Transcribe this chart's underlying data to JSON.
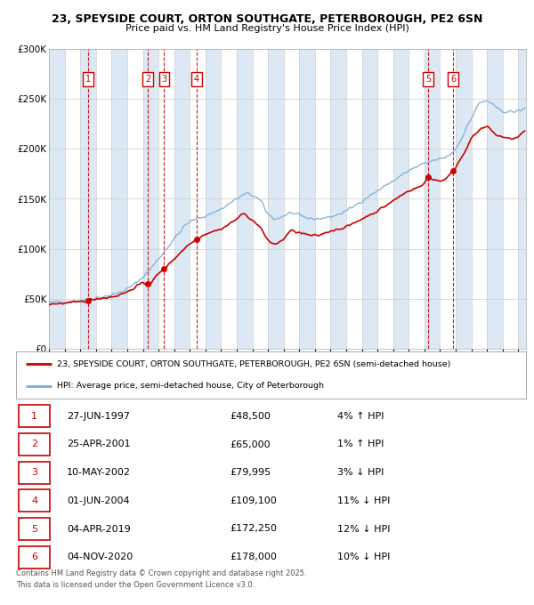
{
  "title_line1": "23, SPEYSIDE COURT, ORTON SOUTHGATE, PETERBOROUGH, PE2 6SN",
  "title_line2": "Price paid vs. HM Land Registry's House Price Index (HPI)",
  "legend_line1": "23, SPEYSIDE COURT, ORTON SOUTHGATE, PETERBOROUGH, PE2 6SN (semi-detached house)",
  "legend_line2": "HPI: Average price, semi-detached house, City of Peterborough",
  "footer_line1": "Contains HM Land Registry data © Crown copyright and database right 2025.",
  "footer_line2": "This data is licensed under the Open Government Licence v3.0.",
  "sale_color": "#cc0000",
  "hpi_color": "#7dadd4",
  "band_color": "#dce9f5",
  "bg_color": "#f0f4f8",
  "ylim": [
    0,
    300000
  ],
  "xlim_start": 1995.0,
  "xlim_end": 2025.5,
  "sales": [
    {
      "num": 1,
      "year": 1997.48,
      "price": 48500
    },
    {
      "num": 2,
      "year": 2001.31,
      "price": 65000
    },
    {
      "num": 3,
      "year": 2002.36,
      "price": 79995
    },
    {
      "num": 4,
      "year": 2004.42,
      "price": 109100
    },
    {
      "num": 5,
      "year": 2019.25,
      "price": 172250
    },
    {
      "num": 6,
      "year": 2020.84,
      "price": 178000
    }
  ],
  "table_rows": [
    {
      "num": 1,
      "date": "27-JUN-1997",
      "price": "£48,500",
      "hpi": "4% ↑ HPI"
    },
    {
      "num": 2,
      "date": "25-APR-2001",
      "price": "£65,000",
      "hpi": "1% ↑ HPI"
    },
    {
      "num": 3,
      "date": "10-MAY-2002",
      "price": "£79,995",
      "hpi": "3% ↓ HPI"
    },
    {
      "num": 4,
      "date": "01-JUN-2004",
      "price": "£109,100",
      "hpi": "11% ↓ HPI"
    },
    {
      "num": 5,
      "date": "04-APR-2019",
      "price": "£172,250",
      "hpi": "12% ↓ HPI"
    },
    {
      "num": 6,
      "date": "04-NOV-2020",
      "price": "£178,000",
      "hpi": "10% ↓ HPI"
    }
  ],
  "hpi_keypoints": [
    [
      1995.0,
      46000
    ],
    [
      1996.0,
      47500
    ],
    [
      1997.0,
      48500
    ],
    [
      1998.0,
      51000
    ],
    [
      1999.0,
      54000
    ],
    [
      2000.0,
      60000
    ],
    [
      2001.0,
      72000
    ],
    [
      2002.0,
      90000
    ],
    [
      2003.0,
      110000
    ],
    [
      2004.0,
      127000
    ],
    [
      2005.0,
      133000
    ],
    [
      2006.0,
      140000
    ],
    [
      2007.0,
      150000
    ],
    [
      2007.7,
      155000
    ],
    [
      2008.5,
      148000
    ],
    [
      2009.0,
      135000
    ],
    [
      2009.5,
      130000
    ],
    [
      2010.0,
      133000
    ],
    [
      2010.5,
      136000
    ],
    [
      2011.0,
      133000
    ],
    [
      2012.0,
      130000
    ],
    [
      2013.0,
      132000
    ],
    [
      2014.0,
      138000
    ],
    [
      2015.0,
      148000
    ],
    [
      2016.0,
      158000
    ],
    [
      2017.0,
      168000
    ],
    [
      2018.0,
      178000
    ],
    [
      2019.0,
      185000
    ],
    [
      2019.5,
      188000
    ],
    [
      2020.0,
      190000
    ],
    [
      2020.5,
      193000
    ],
    [
      2021.0,
      200000
    ],
    [
      2021.5,
      215000
    ],
    [
      2022.0,
      230000
    ],
    [
      2022.5,
      245000
    ],
    [
      2023.0,
      248000
    ],
    [
      2023.5,
      242000
    ],
    [
      2024.0,
      238000
    ],
    [
      2024.5,
      237000
    ],
    [
      2025.4,
      240000
    ]
  ],
  "pp_keypoints": [
    [
      1995.0,
      45000
    ],
    [
      1996.5,
      46000
    ],
    [
      1997.48,
      48500
    ],
    [
      1998.0,
      50000
    ],
    [
      1999.0,
      52000
    ],
    [
      2000.0,
      57000
    ],
    [
      2001.0,
      65000
    ],
    [
      2001.31,
      65000
    ],
    [
      2002.0,
      75000
    ],
    [
      2002.36,
      79995
    ],
    [
      2003.0,
      90000
    ],
    [
      2004.0,
      105000
    ],
    [
      2004.42,
      109100
    ],
    [
      2005.0,
      115000
    ],
    [
      2006.0,
      120000
    ],
    [
      2007.0,
      130000
    ],
    [
      2007.5,
      135000
    ],
    [
      2008.0,
      128000
    ],
    [
      2008.5,
      122000
    ],
    [
      2009.0,
      108000
    ],
    [
      2009.5,
      105000
    ],
    [
      2010.0,
      110000
    ],
    [
      2010.5,
      118000
    ],
    [
      2011.0,
      116000
    ],
    [
      2012.0,
      113000
    ],
    [
      2013.0,
      118000
    ],
    [
      2014.0,
      122000
    ],
    [
      2015.0,
      130000
    ],
    [
      2016.0,
      138000
    ],
    [
      2017.0,
      148000
    ],
    [
      2018.0,
      158000
    ],
    [
      2019.0,
      165000
    ],
    [
      2019.25,
      172250
    ],
    [
      2019.5,
      170000
    ],
    [
      2020.0,
      168000
    ],
    [
      2020.5,
      172000
    ],
    [
      2020.84,
      178000
    ],
    [
      2021.0,
      182000
    ],
    [
      2021.5,
      195000
    ],
    [
      2022.0,
      210000
    ],
    [
      2022.5,
      218000
    ],
    [
      2023.0,
      222000
    ],
    [
      2023.5,
      215000
    ],
    [
      2024.0,
      212000
    ],
    [
      2024.5,
      210000
    ],
    [
      2025.4,
      218000
    ]
  ]
}
